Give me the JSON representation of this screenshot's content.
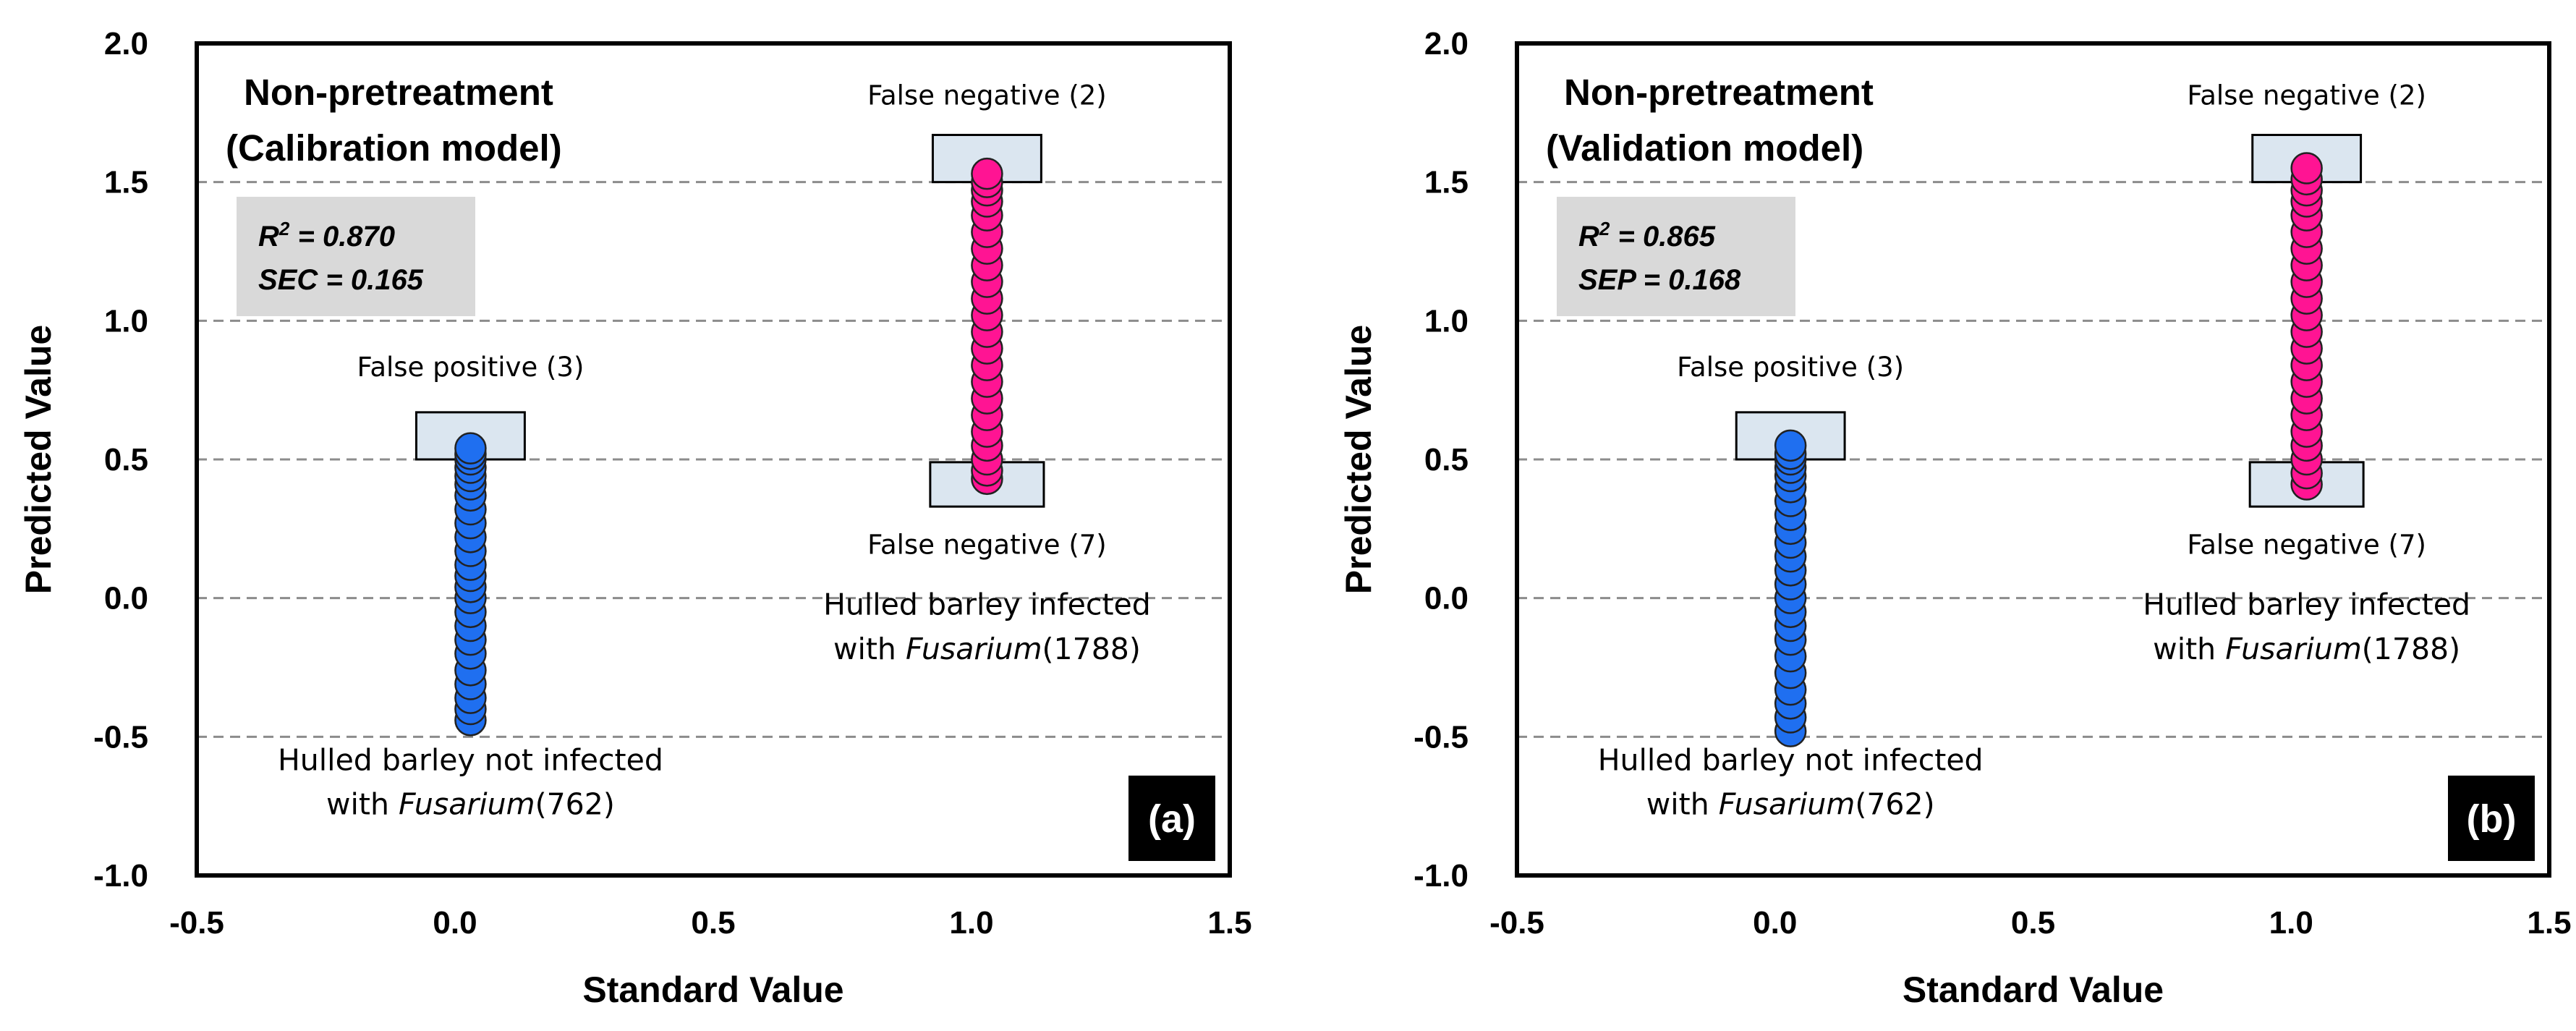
{
  "chart_data": [
    {
      "type": "scatter",
      "title": "Non-pretreatment",
      "subtitle": "(Calibration model)",
      "panel_label": "(a)",
      "xlabel": "Standard Value",
      "ylabel": "Predicted Value",
      "xlim": [
        -0.5,
        1.5
      ],
      "ylim": [
        -1.0,
        2.0
      ],
      "xticks": [
        "-0.5",
        "0.0",
        "0.5",
        "1.0",
        "1.5"
      ],
      "yticks": [
        "-1.0",
        "-0.5",
        "0.0",
        "0.5",
        "1.0",
        "1.5",
        "2.0"
      ],
      "grid": "horizontal dashed",
      "stats": {
        "r2_prefix": "R",
        "r2_sup": "2",
        "r2_value": " =  0.870",
        "error_line": "SEC = 0.165"
      },
      "annotations": {
        "false_positive": "False positive (3)",
        "false_negative_top": "False negative (2)",
        "false_negative_bottom": "False negative (7)"
      },
      "groups": [
        {
          "label_line1": "Hulled barley not infected",
          "label_prefix": "with ",
          "label_italic": "Fusarium",
          "label_count": "(762)",
          "x": 0.03,
          "color": "#1f6ff0",
          "y_values": [
            -0.44,
            -0.4,
            -0.36,
            -0.31,
            -0.26,
            -0.2,
            -0.15,
            -0.1,
            -0.05,
            0.0,
            0.04,
            0.08,
            0.12,
            0.17,
            0.22,
            0.27,
            0.32,
            0.37,
            0.41,
            0.44,
            0.47,
            0.5,
            0.52,
            0.54
          ]
        },
        {
          "label_line1": "Hulled barley infected",
          "label_prefix": "with ",
          "label_italic": "Fusarium",
          "label_count": "(1788)",
          "x": 1.03,
          "color": "#ff1493",
          "y_values": [
            0.43,
            0.46,
            0.5,
            0.55,
            0.6,
            0.66,
            0.72,
            0.78,
            0.84,
            0.9,
            0.96,
            1.02,
            1.08,
            1.14,
            1.2,
            1.26,
            1.32,
            1.38,
            1.43,
            1.47,
            1.5,
            1.53
          ]
        }
      ]
    },
    {
      "type": "scatter",
      "title": "Non-pretreatment",
      "subtitle": "(Validation model)",
      "panel_label": "(b)",
      "xlabel": "Standard Value",
      "ylabel": "Predicted Value",
      "xlim": [
        -0.5,
        1.5
      ],
      "ylim": [
        -1.0,
        2.0
      ],
      "xticks": [
        "-0.5",
        "0.0",
        "0.5",
        "1.0",
        "1.5"
      ],
      "yticks": [
        "-1.0",
        "-0.5",
        "0.0",
        "0.5",
        "1.0",
        "1.5",
        "2.0"
      ],
      "grid": "horizontal dashed",
      "stats": {
        "r2_prefix": "R",
        "r2_sup": "2",
        "r2_value": " =  0.865",
        "error_line": "SEP = 0.168"
      },
      "annotations": {
        "false_positive": "False positive (3)",
        "false_negative_top": "False negative (2)",
        "false_negative_bottom": "False negative (7)"
      },
      "groups": [
        {
          "label_line1": "Hulled barley not infected",
          "label_prefix": "with ",
          "label_italic": "Fusarium",
          "label_count": "(762)",
          "x": 0.03,
          "color": "#1f6ff0",
          "y_values": [
            -0.48,
            -0.43,
            -0.38,
            -0.33,
            -0.27,
            -0.21,
            -0.15,
            -0.1,
            -0.05,
            0.0,
            0.05,
            0.1,
            0.15,
            0.2,
            0.25,
            0.3,
            0.35,
            0.4,
            0.44,
            0.47,
            0.5,
            0.52,
            0.55
          ]
        },
        {
          "label_line1": "Hulled barley infected",
          "label_prefix": "with ",
          "label_italic": "Fusarium",
          "label_count": "(1788)",
          "x": 1.03,
          "color": "#ff1493",
          "y_values": [
            0.41,
            0.45,
            0.5,
            0.55,
            0.6,
            0.66,
            0.72,
            0.78,
            0.84,
            0.9,
            0.96,
            1.02,
            1.08,
            1.14,
            1.2,
            1.26,
            1.32,
            1.38,
            1.43,
            1.47,
            1.51,
            1.55
          ]
        }
      ]
    }
  ]
}
